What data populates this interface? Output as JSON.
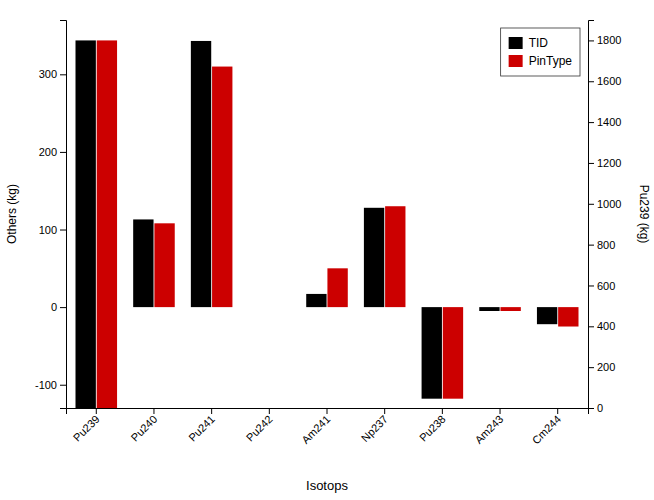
{
  "chart_data": {
    "type": "bar",
    "categories": [
      "Pu239",
      "Pu240",
      "Pu241",
      "Pu242",
      "Am241",
      "Np237",
      "Pu238",
      "Am243",
      "Cm244"
    ],
    "series": [
      {
        "name": "TID",
        "color": "#000000",
        "values": [
          null,
          113,
          343,
          0,
          17,
          128,
          -118,
          -5,
          -22
        ]
      },
      {
        "name": "PinType",
        "color": "#cc0000",
        "values": [
          null,
          108,
          310,
          0,
          50,
          130,
          -118,
          -5,
          -25
        ]
      },
      {
        "name": "TID",
        "color": "#000000",
        "axis": "y2",
        "values": [
          1800,
          null,
          null,
          null,
          null,
          null,
          null,
          null,
          null
        ]
      },
      {
        "name": "PinType",
        "color": "#cc0000",
        "axis": "y2",
        "values": [
          1800,
          null,
          null,
          null,
          null,
          null,
          null,
          null,
          null
        ]
      }
    ],
    "xlabel": "Isotops",
    "ylabel": "Others (kg)",
    "y2label": "Pu239 (kg)",
    "ylim": [
      -130,
      370
    ],
    "yticks": [
      -100,
      0,
      100,
      200,
      300
    ],
    "y2lim": [
      0,
      1900
    ],
    "y2ticks": [
      0,
      200,
      400,
      600,
      800,
      1000,
      1200,
      1400,
      1600,
      1800
    ],
    "grid": false,
    "legend": "upper right"
  }
}
